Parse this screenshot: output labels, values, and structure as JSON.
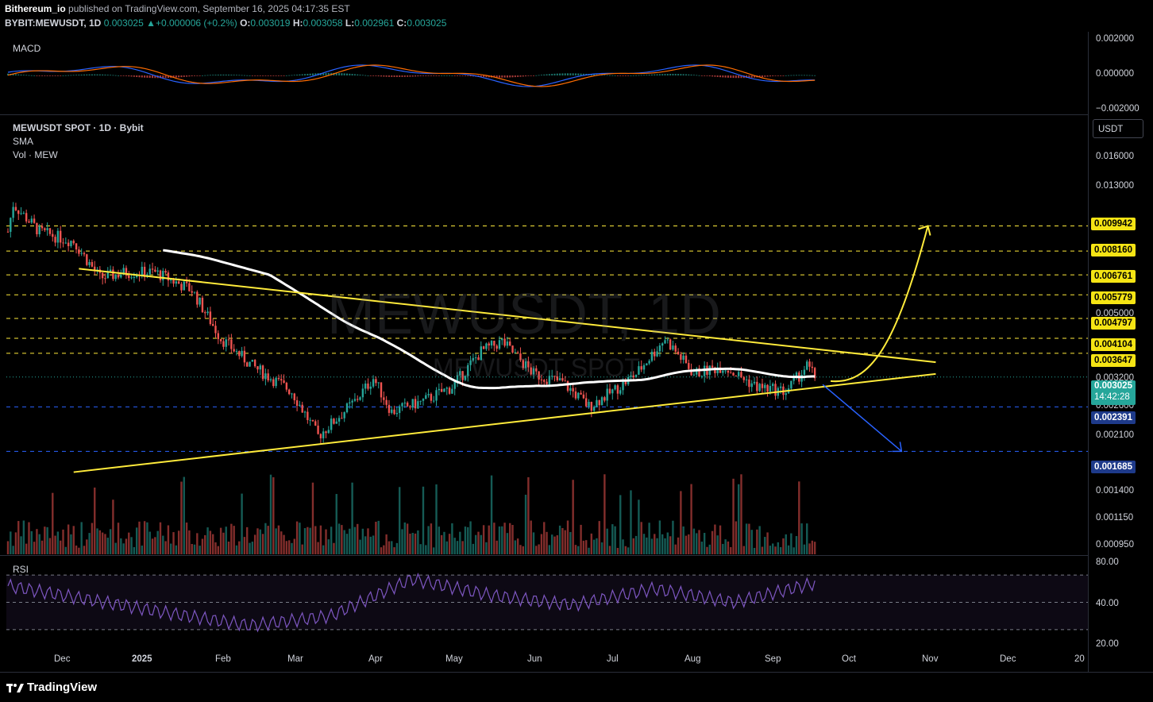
{
  "header": {
    "publisher": "Bithereum_io",
    "published_text": "published on TradingView.com, September 16, 2025 04:17:35 EST",
    "symbol": "BYBIT:MEWUSDT, 1D",
    "last": "0.003025",
    "change": "+0.000006 (+0.2%)",
    "o_label": "O:",
    "o": "0.003019",
    "h_label": "H:",
    "h": "0.003058",
    "l_label": "L:",
    "l": "0.002961",
    "c_label": "C:",
    "c": "0.003025"
  },
  "legend": {
    "title": "MEWUSDT SPOT · 1D · Bybit",
    "sma": "SMA",
    "vol": "Vol · MEW",
    "macd": "MACD",
    "rsi": "RSI"
  },
  "watermark": {
    "main": "MEWUSDT, 1D",
    "sub": "MEWUSDT SPOT"
  },
  "currency_button": "USDT",
  "macd_axis": [
    "0.002000",
    "0.000000",
    "−0.002000"
  ],
  "price_axis": [
    "0.016000",
    "0.013000",
    "0.005000",
    "0.003200",
    "0.002600",
    "0.002100",
    "0.001400",
    "0.001150",
    "0.000950"
  ],
  "rsi_axis": [
    "80.00",
    "40.00",
    "20.00"
  ],
  "time_axis": [
    "Dec",
    "2025",
    "Feb",
    "Mar",
    "Apr",
    "May",
    "Jun",
    "Jul",
    "Aug",
    "Sep",
    "Oct",
    "Nov",
    "Dec",
    "20"
  ],
  "levels": [
    {
      "value": "0.009942",
      "color": "#f5e414",
      "line": "#ffeb3b"
    },
    {
      "value": "0.008160",
      "color": "#f5e414",
      "line": "#ffeb3b"
    },
    {
      "value": "0.006761",
      "color": "#f5e414",
      "line": "#ffeb3b"
    },
    {
      "value": "0.005779",
      "color": "#f5e414",
      "line": "#ffeb3b"
    },
    {
      "value": "0.004797",
      "color": "#f5e414",
      "line": "#ffeb3b"
    },
    {
      "value": "0.004104",
      "color": "#f5e414",
      "line": "#ffeb3b"
    },
    {
      "value": "0.003647",
      "color": "#f5e414",
      "line": "#ffeb3b"
    },
    {
      "value": "0.002391",
      "color": "#1e3a8a",
      "line": "#2962ff"
    },
    {
      "value": "0.001685",
      "color": "#1e3a8a",
      "line": "#2962ff"
    }
  ],
  "current_price": {
    "value": "0.003025",
    "countdown": "14:42:28",
    "color": "#26a69a"
  },
  "footer": {
    "brand": "TradingView"
  },
  "colors": {
    "up": "#26a69a",
    "down": "#ef5350",
    "sma": "#ffffff",
    "trendline": "#ffeb3b",
    "bull_arrow": "#ffeb3b",
    "bear_arrow": "#2962ff",
    "rsi": "#7e57c2",
    "macd": "#2962ff",
    "signal": "#ff6d00"
  },
  "chart_data": {
    "type": "candlestick",
    "title": "MEWUSDT SPOT · 1D · Bybit",
    "scale": "log",
    "ylim": [
      0.00085,
      0.018
    ],
    "x_start": "2024-11-13",
    "x": [
      "2024-12-01",
      "2025-01-01",
      "2025-02-01",
      "2025-03-01",
      "2025-04-01",
      "2025-05-01",
      "2025-06-01",
      "2025-07-01",
      "2025-08-01",
      "2025-09-01",
      "2025-09-16"
    ],
    "close_approx": [
      0.0089,
      0.0069,
      0.0041,
      0.0021,
      0.0028,
      0.0036,
      0.003,
      0.0027,
      0.0031,
      0.0029,
      0.003025
    ],
    "key_points": [
      {
        "date": "2024-11-15",
        "high": 0.0131
      },
      {
        "date": "2025-03-11",
        "low": 0.00176
      },
      {
        "date": "2025-05-20",
        "high": 0.0043
      },
      {
        "date": "2025-06-22",
        "low": 0.0023
      },
      {
        "date": "2025-07-21",
        "high": 0.0042
      },
      {
        "date": "2025-09-16",
        "close": 0.003025
      }
    ],
    "sma_approx": [
      0.007,
      0.0067,
      0.0063,
      0.0058,
      0.0051,
      0.0044,
      0.0037,
      0.0033,
      0.003,
      0.0029,
      0.0029
    ],
    "rsi_range": [
      20,
      80
    ],
    "rsi_approx": [
      62,
      52,
      42,
      33,
      40,
      67,
      55,
      48,
      60,
      50,
      64
    ],
    "annotations": {
      "descending_resistance": [
        [
          "2024-12-10",
          0.0071
        ],
        [
          "2025-11-01",
          0.0034
        ]
      ],
      "ascending_support": [
        [
          "2024-12-08",
          0.00143
        ],
        [
          "2025-11-01",
          0.0031
        ]
      ],
      "bull_target": 0.009942,
      "bear_target": 0.001685
    }
  }
}
